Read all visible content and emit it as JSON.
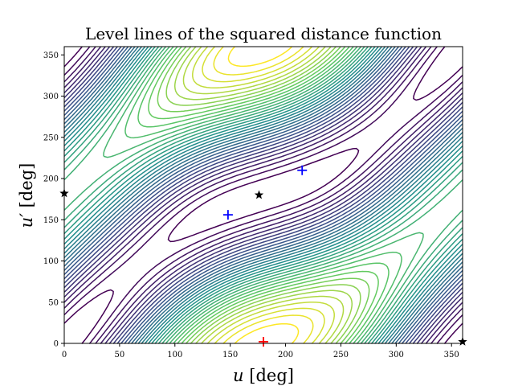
{
  "chart_data": {
    "type": "contour",
    "title": "Level lines of the squared distance function",
    "xlabel": {
      "symbol": "u",
      "unit": " [deg]"
    },
    "ylabel": {
      "symbol": "u′",
      "unit": " [deg]"
    },
    "xlim": [
      0,
      360
    ],
    "ylim": [
      0,
      360
    ],
    "xticks": [
      0,
      50,
      100,
      150,
      200,
      250,
      300,
      350
    ],
    "yticks": [
      0,
      50,
      100,
      150,
      200,
      250,
      300,
      350
    ],
    "grid": false,
    "colormap": [
      "#440154",
      "#3b528b",
      "#21918c",
      "#5ec962",
      "#fde725"
    ],
    "field": {
      "description_params": {
        "A": 1.0,
        "B": 0.55,
        "C": 0.35
      },
      "levels_count": 34
    },
    "markers": [
      {
        "kind": "plus",
        "color": "#0000ff",
        "x": 148,
        "y": 156
      },
      {
        "kind": "plus",
        "color": "#0000ff",
        "x": 215,
        "y": 210
      },
      {
        "kind": "plus",
        "color": "#ff0000",
        "x": 180,
        "y": 2
      },
      {
        "kind": "star",
        "color": "#000000",
        "x": 0,
        "y": 182
      },
      {
        "kind": "star",
        "color": "#000000",
        "x": 176,
        "y": 180
      },
      {
        "kind": "star",
        "color": "#000000",
        "x": 360,
        "y": 2
      }
    ]
  }
}
